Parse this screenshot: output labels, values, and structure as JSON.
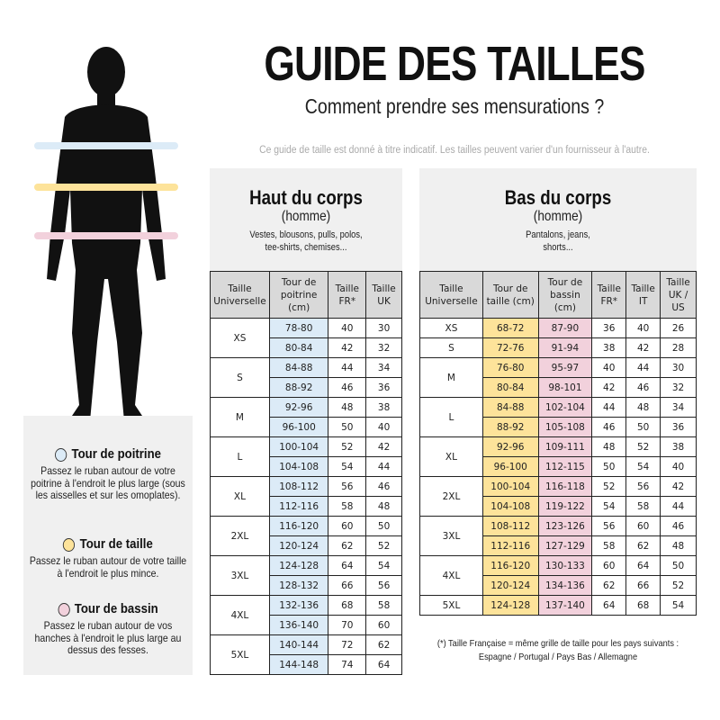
{
  "header": {
    "title": "GUIDE DES TAILLES",
    "subtitle": "Comment prendre ses mensurations ?",
    "disclaimer": "Ce guide de taille est donné à titre indicatif. Les tailles peuvent varier d'un fournisseur à l'autre."
  },
  "colors": {
    "chest": "#dcebf7",
    "waist": "#fde39a",
    "hip": "#f2d1dc",
    "panel": "#f0f0f0",
    "header_cell": "#d9d9d9"
  },
  "legend": [
    {
      "title": "Tour de poitrine",
      "text": "Passez le ruban autour de votre poitrine à l'endroit le plus large (sous les aisselles et sur les omoplates).",
      "color": "#dcebf7"
    },
    {
      "title": "Tour de taille",
      "text": "Passez le ruban autour de votre taille à l'endroit le plus mince.",
      "color": "#fde39a"
    },
    {
      "title": "Tour de bassin",
      "text": "Passez le ruban autour de vos hanches à l'endroit le plus large au dessus des fesses.",
      "color": "#f2d1dc"
    }
  ],
  "top": {
    "title": "Haut du corps",
    "gender": "(homme)",
    "desc": "Vestes, blousons, pulls, polos, tee-shirts, chemises...",
    "columns": [
      "Taille Universelle",
      "Tour de poitrine (cm)",
      "Taille FR*",
      "Taille UK"
    ],
    "groups": [
      {
        "size": "XS",
        "rows": [
          [
            "78-80",
            "40",
            "30"
          ],
          [
            "80-84",
            "42",
            "32"
          ]
        ]
      },
      {
        "size": "S",
        "rows": [
          [
            "84-88",
            "44",
            "34"
          ],
          [
            "88-92",
            "46",
            "36"
          ]
        ]
      },
      {
        "size": "M",
        "rows": [
          [
            "92-96",
            "48",
            "38"
          ],
          [
            "96-100",
            "50",
            "40"
          ]
        ]
      },
      {
        "size": "L",
        "rows": [
          [
            "100-104",
            "52",
            "42"
          ],
          [
            "104-108",
            "54",
            "44"
          ]
        ]
      },
      {
        "size": "XL",
        "rows": [
          [
            "108-112",
            "56",
            "46"
          ],
          [
            "112-116",
            "58",
            "48"
          ]
        ]
      },
      {
        "size": "2XL",
        "rows": [
          [
            "116-120",
            "60",
            "50"
          ],
          [
            "120-124",
            "62",
            "52"
          ]
        ]
      },
      {
        "size": "3XL",
        "rows": [
          [
            "124-128",
            "64",
            "54"
          ],
          [
            "128-132",
            "66",
            "56"
          ]
        ]
      },
      {
        "size": "4XL",
        "rows": [
          [
            "132-136",
            "68",
            "58"
          ],
          [
            "136-140",
            "70",
            "60"
          ]
        ]
      },
      {
        "size": "5XL",
        "rows": [
          [
            "140-144",
            "72",
            "62"
          ],
          [
            "144-148",
            "74",
            "64"
          ]
        ]
      }
    ]
  },
  "bottom": {
    "title": "Bas du corps",
    "gender": "(homme)",
    "desc": "Pantalons, jeans, shorts...",
    "columns": [
      "Taille Universelle",
      "Tour de taille (cm)",
      "Tour de bassin (cm)",
      "Taille FR*",
      "Taille IT",
      "Taille UK / US"
    ],
    "groups": [
      {
        "size": "XS",
        "rows": [
          [
            "68-72",
            "87-90",
            "36",
            "40",
            "26"
          ]
        ]
      },
      {
        "size": "S",
        "rows": [
          [
            "72-76",
            "91-94",
            "38",
            "42",
            "28"
          ]
        ]
      },
      {
        "size": "M",
        "rows": [
          [
            "76-80",
            "95-97",
            "40",
            "44",
            "30"
          ],
          [
            "80-84",
            "98-101",
            "42",
            "46",
            "32"
          ]
        ]
      },
      {
        "size": "L",
        "rows": [
          [
            "84-88",
            "102-104",
            "44",
            "48",
            "34"
          ],
          [
            "88-92",
            "105-108",
            "46",
            "50",
            "36"
          ]
        ]
      },
      {
        "size": "XL",
        "rows": [
          [
            "92-96",
            "109-111",
            "48",
            "52",
            "38"
          ],
          [
            "96-100",
            "112-115",
            "50",
            "54",
            "40"
          ]
        ]
      },
      {
        "size": "2XL",
        "rows": [
          [
            "100-104",
            "116-118",
            "52",
            "56",
            "42"
          ],
          [
            "104-108",
            "119-122",
            "54",
            "58",
            "44"
          ]
        ]
      },
      {
        "size": "3XL",
        "rows": [
          [
            "108-112",
            "123-126",
            "56",
            "60",
            "46"
          ],
          [
            "112-116",
            "127-129",
            "58",
            "62",
            "48"
          ]
        ]
      },
      {
        "size": "4XL",
        "rows": [
          [
            "116-120",
            "130-133",
            "60",
            "64",
            "50"
          ],
          [
            "120-124",
            "134-136",
            "62",
            "66",
            "52"
          ]
        ]
      },
      {
        "size": "5XL",
        "rows": [
          [
            "124-128",
            "137-140",
            "64",
            "68",
            "54"
          ]
        ]
      }
    ]
  },
  "footnote": "(*) Taille Française = même grille de taille pour les pays suivants : Espagne / Portugal / Pays Bas / Allemagne"
}
